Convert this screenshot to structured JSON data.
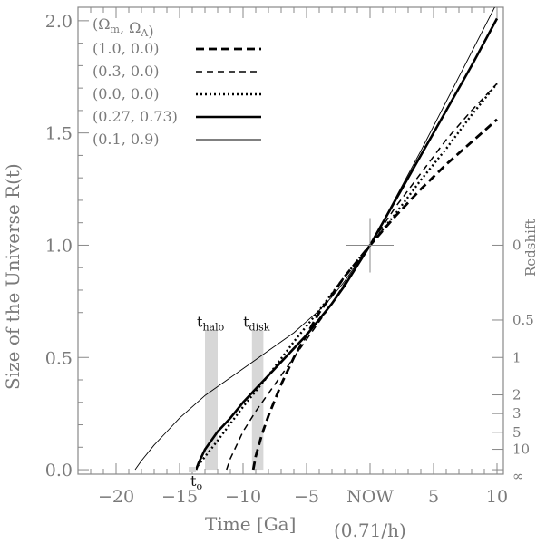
{
  "chart_data": {
    "type": "line",
    "xlabel": "Time [Ga]",
    "xlabel_sub": "(0.71/h)",
    "ylabel": "Size of the Universe  R(t)",
    "right_axis_label": "Redshift",
    "xlim": [
      -23,
      10.5
    ],
    "ylim": [
      -0.02,
      2.06
    ],
    "x_ticks": [
      {
        "value": -20,
        "label": "−20"
      },
      {
        "value": -15,
        "label": "−15"
      },
      {
        "value": -10,
        "label": "−10"
      },
      {
        "value": -5,
        "label": "−5"
      },
      {
        "value": 0,
        "label": "NOW"
      },
      {
        "value": 5,
        "label": "5"
      },
      {
        "value": 10,
        "label": "10"
      }
    ],
    "y_ticks": [
      {
        "value": 0.0,
        "label": "0.0"
      },
      {
        "value": 0.5,
        "label": "0.5"
      },
      {
        "value": 1.0,
        "label": "1.0"
      },
      {
        "value": 1.5,
        "label": "1.5"
      },
      {
        "value": 2.0,
        "label": "2.0"
      }
    ],
    "redshift_ticks": [
      {
        "z": "0",
        "R": 1.0
      },
      {
        "z": "0.5",
        "R": 0.6667
      },
      {
        "z": "1",
        "R": 0.5
      },
      {
        "z": "2",
        "R": 0.3333
      },
      {
        "z": "3",
        "R": 0.25
      },
      {
        "z": "5",
        "R": 0.1667
      },
      {
        "z": "10",
        "R": 0.0909
      },
      {
        "z": "∞",
        "R": 0.0
      }
    ],
    "legend_header": {
      "om": "Ω",
      "om_sub": "m",
      "ol": "Ω",
      "ol_sub": "Λ"
    },
    "series": [
      {
        "name": "(1.0, 0.0)",
        "style": "dash-heavy",
        "x": [
          -9.2,
          -9.0,
          -8.5,
          -8.0,
          -7.0,
          -6.0,
          -5.0,
          -4.0,
          -3.0,
          -2.0,
          -1.0,
          0.0,
          2.0,
          4.0,
          6.0,
          8.0,
          10.0
        ],
        "y": [
          0.0,
          0.06,
          0.16,
          0.24,
          0.38,
          0.5,
          0.6,
          0.7,
          0.78,
          0.86,
          0.93,
          1.0,
          1.13,
          1.25,
          1.36,
          1.46,
          1.56
        ]
      },
      {
        "name": "(0.3, 0.0)",
        "style": "dash-light",
        "x": [
          -11.3,
          -11.0,
          -10.0,
          -9.0,
          -8.0,
          -7.0,
          -6.0,
          -5.0,
          -4.0,
          -3.0,
          -2.0,
          -1.0,
          0.0,
          2.0,
          4.0,
          6.0,
          8.0,
          10.0
        ],
        "y": [
          0.0,
          0.05,
          0.17,
          0.26,
          0.34,
          0.42,
          0.5,
          0.58,
          0.66,
          0.74,
          0.83,
          0.91,
          1.0,
          1.17,
          1.32,
          1.47,
          1.6,
          1.72
        ]
      },
      {
        "name": "(0.0, 0.0)",
        "style": "dotted",
        "x": [
          -13.8,
          -12.0,
          -10.0,
          -8.0,
          -6.0,
          -4.0,
          -2.0,
          0.0,
          2.0,
          4.0,
          6.0,
          8.0,
          10.0
        ],
        "y": [
          0.0,
          0.13,
          0.28,
          0.42,
          0.57,
          0.71,
          0.86,
          1.0,
          1.14,
          1.29,
          1.43,
          1.58,
          1.72
        ]
      },
      {
        "name": "(0.27, 0.73)",
        "style": "solid-heavy",
        "x": [
          -13.7,
          -13.5,
          -13.0,
          -12.0,
          -11.0,
          -10.0,
          -9.0,
          -8.0,
          -7.0,
          -6.0,
          -5.0,
          -4.0,
          -3.0,
          -2.0,
          -1.0,
          0.0,
          2.0,
          4.0,
          6.0,
          8.0,
          10.0
        ],
        "y": [
          0.0,
          0.03,
          0.09,
          0.17,
          0.23,
          0.3,
          0.36,
          0.42,
          0.48,
          0.54,
          0.6,
          0.67,
          0.74,
          0.82,
          0.91,
          1.0,
          1.2,
          1.4,
          1.6,
          1.8,
          2.01
        ]
      },
      {
        "name": "(0.1, 0.9)",
        "style": "solid-thin",
        "x": [
          -18.5,
          -18.0,
          -17.0,
          -16.0,
          -15.0,
          -14.0,
          -13.0,
          -12.0,
          -11.0,
          -10.0,
          -9.0,
          -8.0,
          -7.0,
          -6.0,
          -5.0,
          -4.0,
          -3.0,
          -2.0,
          -1.0,
          0.0,
          2.0,
          4.0,
          6.0,
          8.0,
          10.0
        ],
        "y": [
          0.0,
          0.04,
          0.11,
          0.17,
          0.23,
          0.28,
          0.33,
          0.37,
          0.41,
          0.45,
          0.49,
          0.53,
          0.57,
          0.61,
          0.66,
          0.71,
          0.77,
          0.84,
          0.92,
          1.0,
          1.21,
          1.42,
          1.64,
          1.86,
          2.08
        ]
      }
    ],
    "bands": [
      {
        "label": "t",
        "label_sub": "halo",
        "x0": -13.0,
        "x1": -12.0,
        "y0": 0.0,
        "y1": 0.62
      },
      {
        "label": "t",
        "label_sub": "disk",
        "x0": -9.3,
        "x1": -8.4,
        "y0": 0.0,
        "y1": 0.62
      }
    ],
    "t0_annotation": {
      "label": "t",
      "label_sub": "o",
      "x": -14.0
    },
    "now_marker": {
      "x": 0,
      "y": 1.0
    }
  }
}
